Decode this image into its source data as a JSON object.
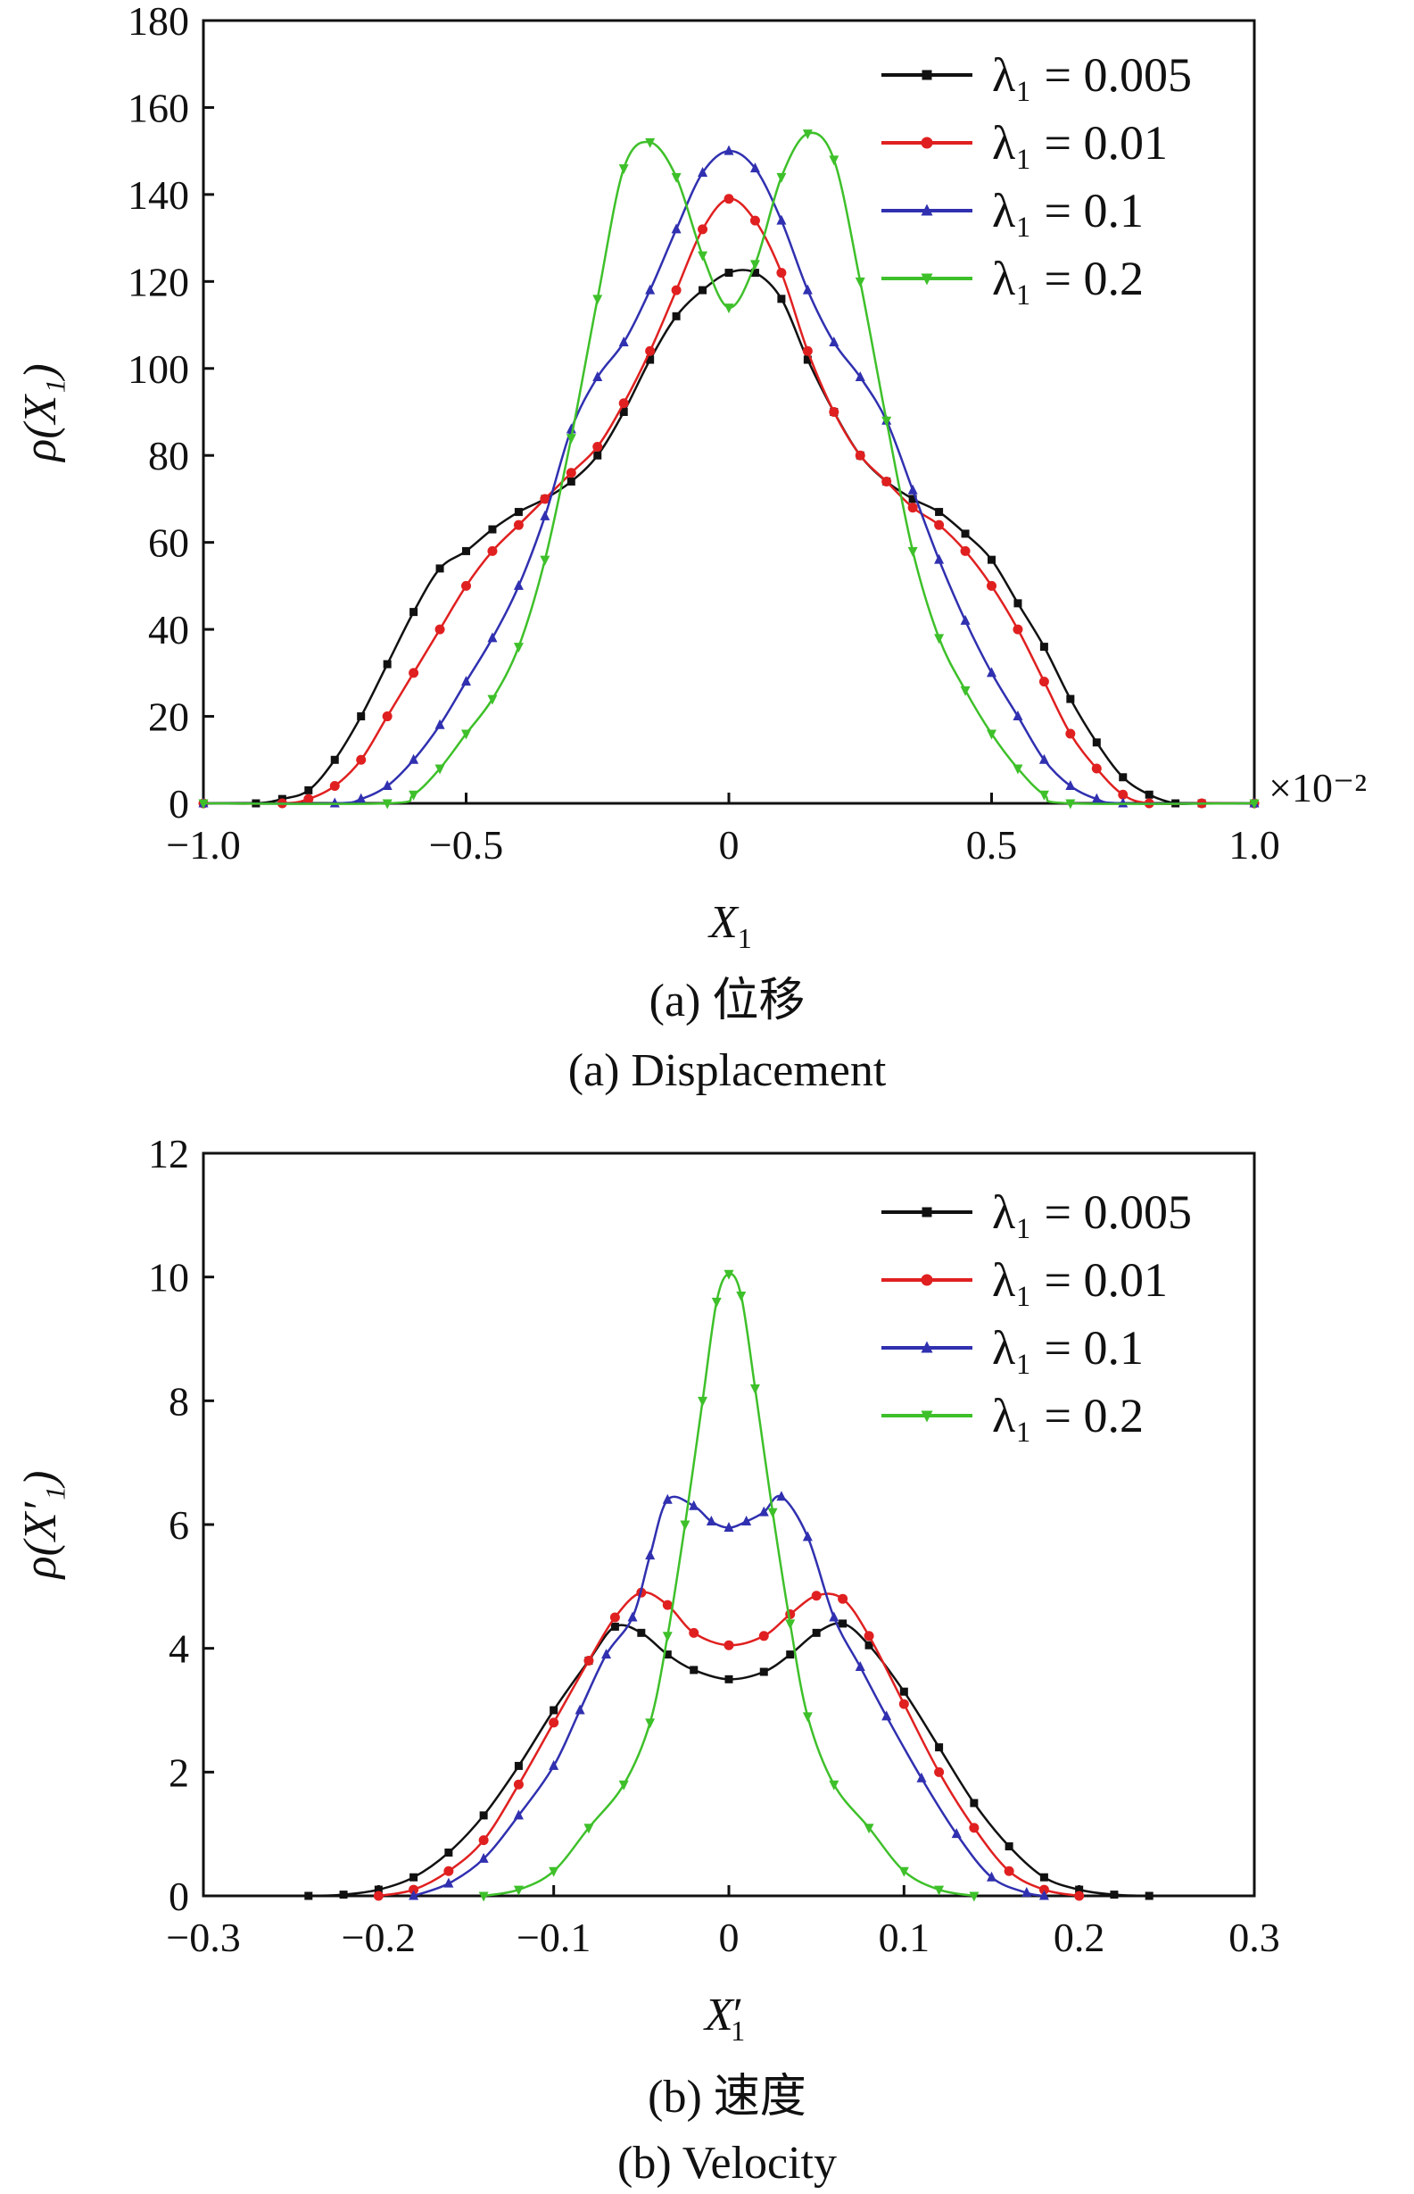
{
  "chart_data": [
    {
      "type": "line",
      "caption_cn": "(a)  位移",
      "caption_en": "(a)  Displacement",
      "xlabel": "X",
      "xlabel_sub": "1",
      "ylabel": "ρ(X₁)",
      "x_multiplier": "×10⁻²",
      "xlim": [
        -1.0,
        1.0
      ],
      "ylim": [
        0,
        180
      ],
      "xticks": [
        -1.0,
        -0.5,
        0,
        0.5,
        1.0
      ],
      "xtick_labels": [
        "−1.0",
        "−0.5",
        "0",
        "0.5",
        "1.0"
      ],
      "yticks": [
        0,
        20,
        40,
        60,
        80,
        100,
        120,
        140,
        160,
        180
      ],
      "ytick_labels": [
        "0",
        "20",
        "40",
        "60",
        "80",
        "100",
        "120",
        "140",
        "160",
        "180"
      ],
      "legend_position": "top-right",
      "series": [
        {
          "name": "λ₁ = 0.005",
          "color": "#111111",
          "marker": "square",
          "points": [
            [
              -1.0,
              0
            ],
            [
              -0.9,
              0
            ],
            [
              -0.85,
              1
            ],
            [
              -0.8,
              3
            ],
            [
              -0.75,
              10
            ],
            [
              -0.7,
              20
            ],
            [
              -0.65,
              32
            ],
            [
              -0.6,
              44
            ],
            [
              -0.55,
              54
            ],
            [
              -0.5,
              58
            ],
            [
              -0.45,
              63
            ],
            [
              -0.4,
              67
            ],
            [
              -0.35,
              70
            ],
            [
              -0.3,
              74
            ],
            [
              -0.25,
              80
            ],
            [
              -0.2,
              90
            ],
            [
              -0.15,
              102
            ],
            [
              -0.1,
              112
            ],
            [
              -0.05,
              118
            ],
            [
              0,
              122
            ],
            [
              0.05,
              122
            ],
            [
              0.1,
              116
            ],
            [
              0.15,
              102
            ],
            [
              0.2,
              90
            ],
            [
              0.25,
              80
            ],
            [
              0.3,
              74
            ],
            [
              0.35,
              70
            ],
            [
              0.4,
              67
            ],
            [
              0.45,
              62
            ],
            [
              0.5,
              56
            ],
            [
              0.55,
              46
            ],
            [
              0.6,
              36
            ],
            [
              0.65,
              24
            ],
            [
              0.7,
              14
            ],
            [
              0.75,
              6
            ],
            [
              0.8,
              2
            ],
            [
              0.85,
              0
            ],
            [
              0.9,
              0
            ],
            [
              1.0,
              0
            ]
          ]
        },
        {
          "name": "λ₁ = 0.01",
          "color": "#e02020",
          "marker": "circle",
          "points": [
            [
              -1.0,
              0
            ],
            [
              -0.85,
              0
            ],
            [
              -0.8,
              1
            ],
            [
              -0.75,
              4
            ],
            [
              -0.7,
              10
            ],
            [
              -0.65,
              20
            ],
            [
              -0.6,
              30
            ],
            [
              -0.55,
              40
            ],
            [
              -0.5,
              50
            ],
            [
              -0.45,
              58
            ],
            [
              -0.4,
              64
            ],
            [
              -0.35,
              70
            ],
            [
              -0.3,
              76
            ],
            [
              -0.25,
              82
            ],
            [
              -0.2,
              92
            ],
            [
              -0.15,
              104
            ],
            [
              -0.1,
              118
            ],
            [
              -0.05,
              132
            ],
            [
              0,
              139
            ],
            [
              0.05,
              134
            ],
            [
              0.1,
              122
            ],
            [
              0.15,
              104
            ],
            [
              0.2,
              90
            ],
            [
              0.25,
              80
            ],
            [
              0.3,
              74
            ],
            [
              0.35,
              68
            ],
            [
              0.4,
              64
            ],
            [
              0.45,
              58
            ],
            [
              0.5,
              50
            ],
            [
              0.55,
              40
            ],
            [
              0.6,
              28
            ],
            [
              0.65,
              16
            ],
            [
              0.7,
              8
            ],
            [
              0.75,
              2
            ],
            [
              0.8,
              0
            ],
            [
              0.9,
              0
            ],
            [
              1.0,
              0
            ]
          ]
        },
        {
          "name": "λ₁ = 0.1",
          "color": "#3030b0",
          "marker": "triangle-up",
          "points": [
            [
              -1.0,
              0
            ],
            [
              -0.75,
              0
            ],
            [
              -0.7,
              1
            ],
            [
              -0.65,
              4
            ],
            [
              -0.6,
              10
            ],
            [
              -0.55,
              18
            ],
            [
              -0.5,
              28
            ],
            [
              -0.45,
              38
            ],
            [
              -0.4,
              50
            ],
            [
              -0.35,
              66
            ],
            [
              -0.3,
              86
            ],
            [
              -0.25,
              98
            ],
            [
              -0.2,
              106
            ],
            [
              -0.15,
              118
            ],
            [
              -0.1,
              132
            ],
            [
              -0.05,
              145
            ],
            [
              0,
              150
            ],
            [
              0.05,
              146
            ],
            [
              0.1,
              134
            ],
            [
              0.15,
              118
            ],
            [
              0.2,
              106
            ],
            [
              0.25,
              98
            ],
            [
              0.3,
              88
            ],
            [
              0.35,
              72
            ],
            [
              0.4,
              56
            ],
            [
              0.45,
              42
            ],
            [
              0.5,
              30
            ],
            [
              0.55,
              20
            ],
            [
              0.6,
              10
            ],
            [
              0.65,
              4
            ],
            [
              0.7,
              1
            ],
            [
              0.75,
              0
            ],
            [
              1.0,
              0
            ]
          ]
        },
        {
          "name": "λ₁ = 0.2",
          "color": "#3ec02a",
          "marker": "triangle-down",
          "points": [
            [
              -1.0,
              0
            ],
            [
              -0.65,
              0
            ],
            [
              -0.6,
              2
            ],
            [
              -0.55,
              8
            ],
            [
              -0.5,
              16
            ],
            [
              -0.45,
              24
            ],
            [
              -0.4,
              36
            ],
            [
              -0.35,
              56
            ],
            [
              -0.3,
              84
            ],
            [
              -0.25,
              116
            ],
            [
              -0.2,
              146
            ],
            [
              -0.15,
              152
            ],
            [
              -0.1,
              144
            ],
            [
              -0.05,
              126
            ],
            [
              0,
              114
            ],
            [
              0.05,
              124
            ],
            [
              0.1,
              144
            ],
            [
              0.15,
              154
            ],
            [
              0.2,
              148
            ],
            [
              0.25,
              120
            ],
            [
              0.3,
              88
            ],
            [
              0.35,
              58
            ],
            [
              0.4,
              38
            ],
            [
              0.45,
              26
            ],
            [
              0.5,
              16
            ],
            [
              0.55,
              8
            ],
            [
              0.6,
              2
            ],
            [
              0.65,
              0
            ],
            [
              1.0,
              0
            ]
          ]
        }
      ]
    },
    {
      "type": "line",
      "caption_cn": "(b)  速度",
      "caption_en": "(b)  Velocity",
      "xlabel": "X",
      "xlabel_sub": "1",
      "ylabel": "ρ(X′₁)",
      "xlim": [
        -0.3,
        0.3
      ],
      "ylim": [
        0,
        12
      ],
      "xticks": [
        -0.3,
        -0.2,
        -0.1,
        0,
        0.1,
        0.2,
        0.3
      ],
      "xtick_labels": [
        "−0.3",
        "−0.2",
        "−0.1",
        "0",
        "0.1",
        "0.2",
        "0.3"
      ],
      "yticks": [
        0,
        2,
        4,
        6,
        8,
        10,
        12
      ],
      "ytick_labels": [
        "0",
        "2",
        "4",
        "6",
        "8",
        "10",
        "12"
      ],
      "legend_position": "top-right",
      "series": [
        {
          "name": "λ₁ = 0.005",
          "color": "#111111",
          "marker": "square",
          "points": [
            [
              -0.24,
              0
            ],
            [
              -0.22,
              0.02
            ],
            [
              -0.2,
              0.1
            ],
            [
              -0.18,
              0.3
            ],
            [
              -0.16,
              0.7
            ],
            [
              -0.14,
              1.3
            ],
            [
              -0.12,
              2.1
            ],
            [
              -0.1,
              3.0
            ],
            [
              -0.08,
              3.8
            ],
            [
              -0.065,
              4.35
            ],
            [
              -0.05,
              4.25
            ],
            [
              -0.035,
              3.9
            ],
            [
              -0.02,
              3.65
            ],
            [
              0,
              3.5
            ],
            [
              0.02,
              3.62
            ],
            [
              0.035,
              3.9
            ],
            [
              0.05,
              4.25
            ],
            [
              0.065,
              4.4
            ],
            [
              0.08,
              4.05
            ],
            [
              0.1,
              3.3
            ],
            [
              0.12,
              2.4
            ],
            [
              0.14,
              1.5
            ],
            [
              0.16,
              0.8
            ],
            [
              0.18,
              0.3
            ],
            [
              0.2,
              0.1
            ],
            [
              0.22,
              0.02
            ],
            [
              0.24,
              0
            ]
          ]
        },
        {
          "name": "λ₁ = 0.01",
          "color": "#e02020",
          "marker": "circle",
          "points": [
            [
              -0.2,
              0
            ],
            [
              -0.18,
              0.1
            ],
            [
              -0.16,
              0.4
            ],
            [
              -0.14,
              0.9
            ],
            [
              -0.12,
              1.8
            ],
            [
              -0.1,
              2.8
            ],
            [
              -0.08,
              3.8
            ],
            [
              -0.065,
              4.5
            ],
            [
              -0.05,
              4.9
            ],
            [
              -0.035,
              4.7
            ],
            [
              -0.02,
              4.25
            ],
            [
              0,
              4.05
            ],
            [
              0.02,
              4.2
            ],
            [
              0.035,
              4.55
            ],
            [
              0.05,
              4.85
            ],
            [
              0.065,
              4.8
            ],
            [
              0.08,
              4.2
            ],
            [
              0.1,
              3.1
            ],
            [
              0.12,
              2.0
            ],
            [
              0.14,
              1.1
            ],
            [
              0.16,
              0.4
            ],
            [
              0.18,
              0.1
            ],
            [
              0.2,
              0
            ]
          ]
        },
        {
          "name": "λ₁ = 0.1",
          "color": "#3030b0",
          "marker": "triangle-up",
          "points": [
            [
              -0.18,
              0
            ],
            [
              -0.16,
              0.2
            ],
            [
              -0.14,
              0.6
            ],
            [
              -0.12,
              1.3
            ],
            [
              -0.1,
              2.1
            ],
            [
              -0.085,
              3.0
            ],
            [
              -0.07,
              3.9
            ],
            [
              -0.055,
              4.5
            ],
            [
              -0.045,
              5.5
            ],
            [
              -0.035,
              6.4
            ],
            [
              -0.02,
              6.3
            ],
            [
              -0.01,
              6.05
            ],
            [
              0,
              5.95
            ],
            [
              0.01,
              6.05
            ],
            [
              0.02,
              6.2
            ],
            [
              0.03,
              6.45
            ],
            [
              0.045,
              5.8
            ],
            [
              0.06,
              4.5
            ],
            [
              0.075,
              3.7
            ],
            [
              0.09,
              2.9
            ],
            [
              0.11,
              1.9
            ],
            [
              0.13,
              1.0
            ],
            [
              0.15,
              0.3
            ],
            [
              0.17,
              0.05
            ],
            [
              0.18,
              0
            ]
          ]
        },
        {
          "name": "λ₁ = 0.2",
          "color": "#3ec02a",
          "marker": "triangle-down",
          "points": [
            [
              -0.14,
              0
            ],
            [
              -0.12,
              0.1
            ],
            [
              -0.1,
              0.4
            ],
            [
              -0.08,
              1.1
            ],
            [
              -0.06,
              1.8
            ],
            [
              -0.045,
              2.8
            ],
            [
              -0.035,
              4.2
            ],
            [
              -0.025,
              6.0
            ],
            [
              -0.015,
              8.0
            ],
            [
              -0.007,
              9.6
            ],
            [
              0,
              10.05
            ],
            [
              0.007,
              9.7
            ],
            [
              0.015,
              8.2
            ],
            [
              0.025,
              6.2
            ],
            [
              0.035,
              4.4
            ],
            [
              0.045,
              2.9
            ],
            [
              0.06,
              1.8
            ],
            [
              0.08,
              1.1
            ],
            [
              0.1,
              0.4
            ],
            [
              0.12,
              0.1
            ],
            [
              0.14,
              0
            ]
          ]
        }
      ]
    }
  ]
}
